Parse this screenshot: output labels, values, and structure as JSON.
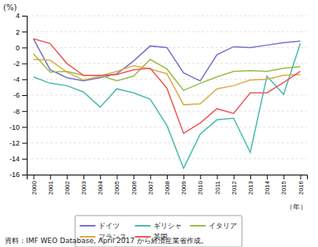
{
  "chart_data": {
    "type": "line",
    "ylabel": "(%)",
    "xlabel": "（年）",
    "footnote": "資料：IMF WEO Database, April 2017 から経済産業省作成。",
    "x": [
      2000,
      2001,
      2002,
      2003,
      2004,
      2005,
      2006,
      2007,
      2008,
      2009,
      2010,
      2011,
      2012,
      2013,
      2014,
      2015,
      2016
    ],
    "xlim": [
      1999.6,
      2016.4
    ],
    "xticks": [
      2000,
      2001,
      2002,
      2003,
      2004,
      2005,
      2006,
      2007,
      2008,
      2009,
      2010,
      2011,
      2012,
      2013,
      2014,
      2015,
      2016
    ],
    "ylim": [
      -16,
      4
    ],
    "yticks": [
      -16,
      -14,
      -12,
      -10,
      -8,
      -6,
      -4,
      -2,
      0,
      2,
      4
    ],
    "grid": true,
    "legend": "bottom",
    "series": [
      {
        "name": "ドイツ",
        "color": "#7070cc",
        "values": [
          1.1,
          -2.8,
          -3.8,
          -4.2,
          -3.8,
          -3.3,
          -1.7,
          0.2,
          0.0,
          -3.2,
          -4.2,
          -0.9,
          0.1,
          0.0,
          0.3,
          0.6,
          0.8
        ]
      },
      {
        "name": "ギリシャ",
        "color": "#44bbaa",
        "values": [
          -3.7,
          -4.5,
          -4.8,
          -5.6,
          -7.5,
          -5.2,
          -5.7,
          -6.5,
          -9.8,
          -15.2,
          -10.9,
          -9.1,
          -8.9,
          -13.2,
          -3.6,
          -5.9,
          0.5
        ]
      },
      {
        "name": "イタリア",
        "color": "#99bb44",
        "values": [
          -0.8,
          -3.1,
          -3.0,
          -3.5,
          -3.5,
          -4.2,
          -3.6,
          -1.5,
          -2.7,
          -5.4,
          -4.5,
          -3.7,
          -3.0,
          -2.9,
          -3.0,
          -2.6,
          -2.4
        ]
      },
      {
        "name": "フランス",
        "color": "#ddaa44",
        "values": [
          -1.5,
          -1.6,
          -3.1,
          -4.1,
          -3.6,
          -3.0,
          -2.3,
          -2.7,
          -3.3,
          -7.2,
          -7.1,
          -5.2,
          -4.8,
          -4.1,
          -4.0,
          -3.5,
          -3.4
        ]
      },
      {
        "name": "英国",
        "color": "#ee5555",
        "values": [
          1.1,
          0.5,
          -2.0,
          -3.5,
          -3.5,
          -3.4,
          -2.8,
          -2.6,
          -5.1,
          -10.8,
          -9.5,
          -7.7,
          -8.3,
          -5.7,
          -5.7,
          -4.4,
          -3.0
        ]
      }
    ]
  }
}
